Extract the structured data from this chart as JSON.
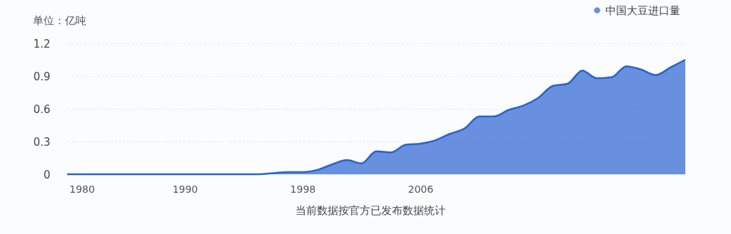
{
  "chart_data": {
    "type": "area",
    "ylabel": "单位：亿吨",
    "annotations": [
      "当前数据按官方已发布数据统计"
    ],
    "categories": [
      null,
      "1980",
      null,
      null,
      null,
      null,
      null,
      null,
      "1990",
      null,
      null,
      null,
      null,
      null,
      null,
      null,
      "1998",
      null,
      null,
      null,
      null,
      null,
      null,
      null,
      "2006",
      null,
      null,
      null,
      null,
      null,
      null,
      null,
      null,
      null,
      null,
      null,
      null,
      null,
      null,
      null,
      null,
      null,
      null
    ],
    "series": [
      {
        "name": "中国大豆进口量",
        "color": "#2a62d0",
        "values": [
          0,
          0,
          0,
          0,
          0,
          0,
          0,
          0,
          0,
          0,
          0,
          0,
          0,
          0,
          0.01,
          0.02,
          0.02,
          0.04,
          0.09,
          0.13,
          0.1,
          0.21,
          0.2,
          0.27,
          0.28,
          0.31,
          0.37,
          0.42,
          0.53,
          0.53,
          0.59,
          0.63,
          0.7,
          0.81,
          0.83,
          0.95,
          0.88,
          0.89,
          0.99,
          0.96,
          0.91,
          0.98,
          1.05
        ]
      }
    ],
    "ylim": [
      0,
      1.2
    ],
    "yticks": [
      0,
      0.3,
      0.6,
      0.9,
      1.2
    ],
    "grid": "y",
    "legend": "top right"
  }
}
